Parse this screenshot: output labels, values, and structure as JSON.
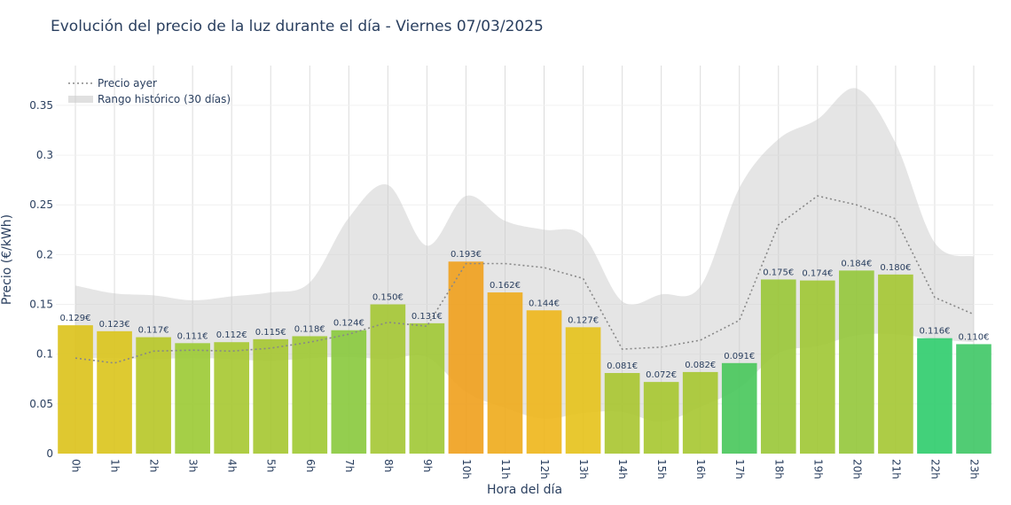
{
  "chart_data": {
    "type": "bar",
    "title": "Evolución del precio de la luz durante el día - Viernes 07/03/2025",
    "xlabel": "Hora del día",
    "ylabel": "Precio (€/kWh)",
    "ylim": [
      0,
      0.39
    ],
    "yticks": [
      "0",
      "0.05",
      "0.1",
      "0.15",
      "0.2",
      "0.25",
      "0.3",
      "0.35"
    ],
    "categories": [
      "0h",
      "1h",
      "2h",
      "3h",
      "4h",
      "5h",
      "6h",
      "7h",
      "8h",
      "9h",
      "10h",
      "11h",
      "12h",
      "13h",
      "14h",
      "15h",
      "16h",
      "17h",
      "18h",
      "19h",
      "20h",
      "21h",
      "22h",
      "23h"
    ],
    "values": [
      0.129,
      0.123,
      0.117,
      0.111,
      0.112,
      0.115,
      0.118,
      0.124,
      0.15,
      0.131,
      0.193,
      0.162,
      0.144,
      0.127,
      0.081,
      0.072,
      0.082,
      0.091,
      0.175,
      0.174,
      0.184,
      0.18,
      0.116,
      0.11
    ],
    "value_labels": [
      "0.129€",
      "0.123€",
      "0.117€",
      "0.111€",
      "0.112€",
      "0.115€",
      "0.118€",
      "0.124€",
      "0.150€",
      "0.131€",
      "0.193€",
      "0.162€",
      "0.144€",
      "0.127€",
      "0.081€",
      "0.072€",
      "0.082€",
      "0.091€",
      "0.175€",
      "0.174€",
      "0.184€",
      "0.180€",
      "0.116€",
      "0.110€"
    ],
    "bar_colors": [
      "#dcc21a",
      "#dac41b",
      "#b7c626",
      "#9bca33",
      "#a6c830",
      "#a5c730",
      "#9ec932",
      "#88c93c",
      "#a4c733",
      "#a0c834",
      "#f0a01c",
      "#eeab1b",
      "#eeb61a",
      "#e6c219",
      "#a8c52f",
      "#a6c62f",
      "#a6c630",
      "#47c75a",
      "#99c636",
      "#9ec733",
      "#94c63a",
      "#a4c632",
      "#2dcc6c",
      "#3ec765"
    ],
    "series": [
      {
        "name": "Precio ayer",
        "style": "dotted",
        "color": "#888888",
        "values": [
          0.096,
          0.091,
          0.103,
          0.104,
          0.103,
          0.106,
          0.112,
          0.12,
          0.132,
          0.128,
          0.191,
          0.191,
          0.187,
          0.176,
          0.105,
          0.107,
          0.114,
          0.134,
          0.23,
          0.259,
          0.25,
          0.236,
          0.157,
          0.14
        ]
      },
      {
        "name": "Rango histórico (30 días)",
        "style": "band",
        "color": "#cccccc",
        "upper": [
          0.169,
          0.161,
          0.159,
          0.154,
          0.158,
          0.162,
          0.172,
          0.237,
          0.27,
          0.209,
          0.259,
          0.234,
          0.225,
          0.219,
          0.153,
          0.16,
          0.168,
          0.267,
          0.316,
          0.336,
          0.367,
          0.312,
          0.212,
          0.198
        ],
        "lower": [
          0.096,
          0.096,
          0.095,
          0.096,
          0.095,
          0.093,
          0.096,
          0.097,
          0.095,
          0.097,
          0.062,
          0.046,
          0.035,
          0.041,
          0.042,
          0.032,
          0.047,
          0.066,
          0.101,
          0.108,
          0.119,
          0.12,
          0.115,
          0.112
        ]
      }
    ],
    "grid": true,
    "legend": "top-left"
  }
}
